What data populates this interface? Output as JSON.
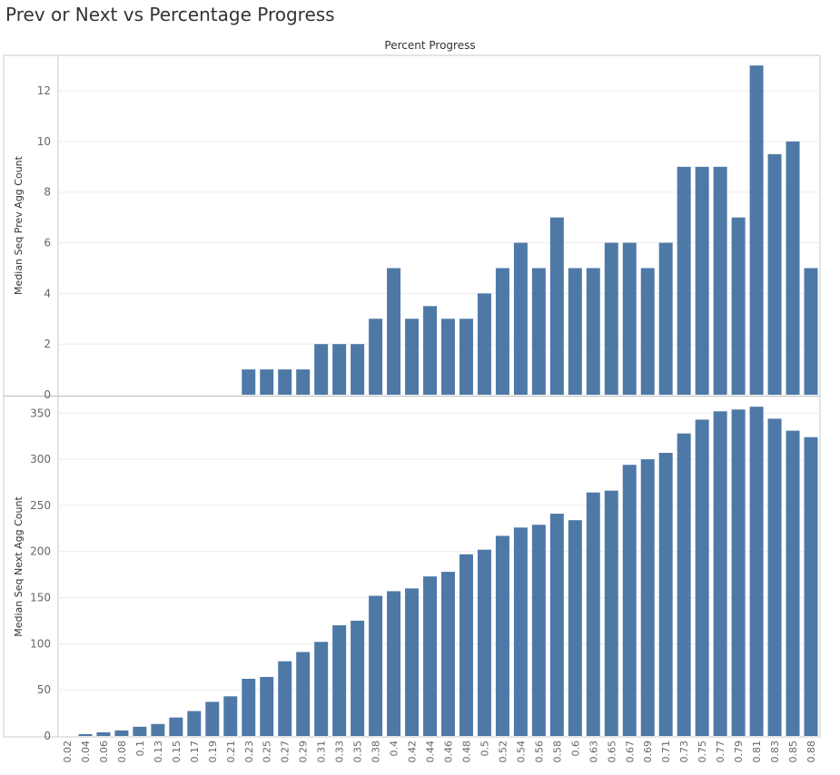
{
  "title": "Prev or Next vs Percentage Progress",
  "chart_data": {
    "type": "bar",
    "column_header": "Percent Progress",
    "categories": [
      "0.02",
      "0.04",
      "0.06",
      "0.08",
      "0.1",
      "0.13",
      "0.15",
      "0.17",
      "0.19",
      "0.21",
      "0.23",
      "0.25",
      "0.27",
      "0.29",
      "0.31",
      "0.33",
      "0.35",
      "0.38",
      "0.4",
      "0.42",
      "0.44",
      "0.46",
      "0.48",
      "0.5",
      "0.52",
      "0.54",
      "0.56",
      "0.58",
      "0.6",
      "0.63",
      "0.65",
      "0.67",
      "0.69",
      "0.71",
      "0.73",
      "0.75",
      "0.77",
      "0.79",
      "0.81",
      "0.83",
      "0.85",
      "0.88"
    ],
    "panels": [
      {
        "ylabel": "Median Seq Prev Agg Count",
        "yticks": [
          0,
          2,
          4,
          6,
          8,
          10,
          12
        ],
        "ylim": [
          0,
          13.4
        ],
        "values": [
          null,
          null,
          null,
          null,
          null,
          null,
          null,
          null,
          null,
          null,
          1,
          1,
          1,
          1,
          2,
          2,
          2,
          3,
          5,
          3,
          3.5,
          3,
          3,
          4,
          5,
          6,
          5,
          7,
          5,
          5,
          6,
          6,
          5,
          6,
          9,
          9,
          9,
          7,
          13,
          9.5,
          10,
          5
        ]
      },
      {
        "ylabel": "Median Seq Next Agg Count",
        "yticks": [
          0,
          50,
          100,
          150,
          200,
          250,
          300,
          350
        ],
        "ylim": [
          0,
          368
        ],
        "values": [
          null,
          2,
          4,
          6,
          10,
          13,
          20,
          27,
          37,
          43,
          62,
          64,
          81,
          91,
          102,
          120,
          125,
          152,
          157,
          160,
          173,
          178,
          197,
          202,
          217,
          226,
          229,
          241,
          234,
          264,
          266,
          294,
          300,
          307,
          328,
          343,
          352,
          354,
          357,
          344,
          331,
          324
        ]
      }
    ],
    "bar_color": "#4e79a7",
    "grid": true
  }
}
